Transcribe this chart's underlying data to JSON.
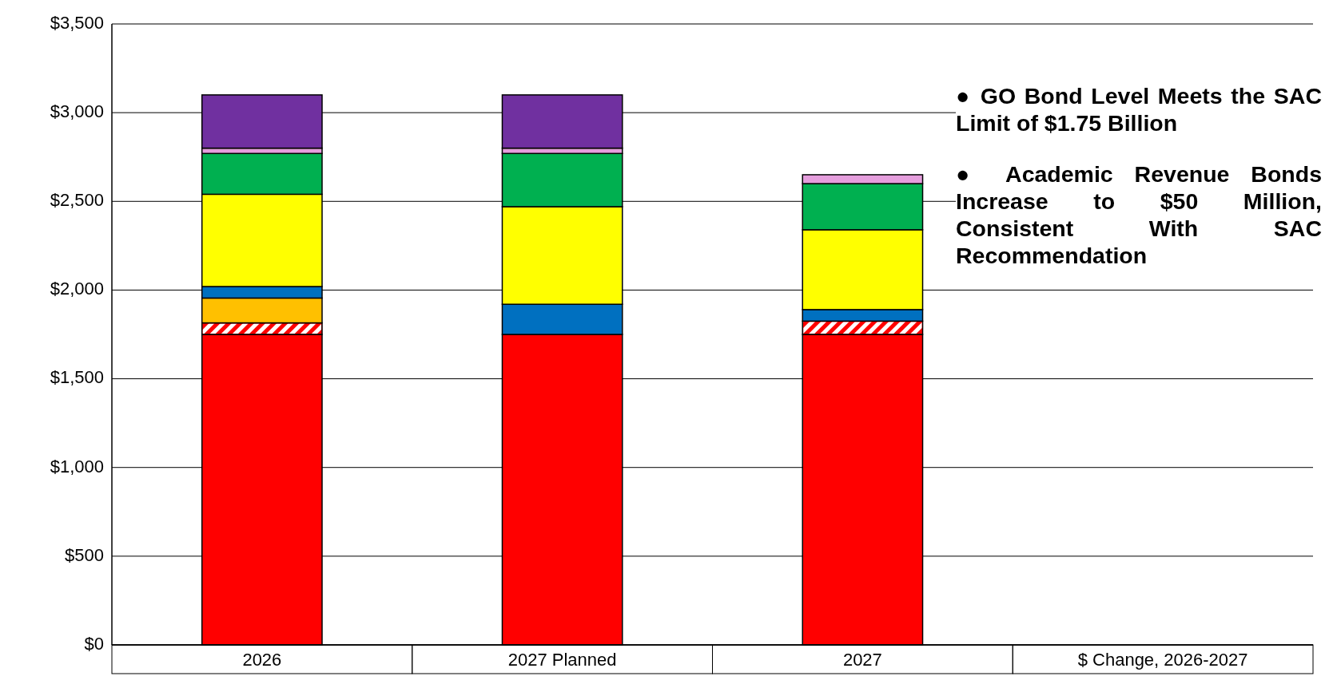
{
  "chart_data": {
    "type": "bar",
    "stacked": true,
    "categories": [
      "2026",
      "2027 Planned",
      "2027",
      "$ Change, 2026-2027"
    ],
    "series": [
      {
        "color": "#ff0000",
        "values": [
          1750,
          1750,
          1750,
          null
        ]
      },
      {
        "color": "#ff0000",
        "values": [
          65,
          0,
          75,
          null
        ]
      },
      {
        "color": "#ffc000",
        "values": [
          140,
          0,
          0,
          null
        ]
      },
      {
        "color": "#0070c0",
        "values": [
          65,
          170,
          65,
          null
        ]
      },
      {
        "color": "#ffff00",
        "values": [
          520,
          550,
          450,
          null
        ]
      },
      {
        "color": "#00b050",
        "values": [
          230,
          300,
          260,
          null
        ]
      },
      {
        "color": "#e59edd",
        "values": [
          30,
          30,
          50,
          null
        ]
      },
      {
        "color": "#7030a0",
        "values": [
          300,
          300,
          0,
          null
        ]
      }
    ],
    "ylim": [
      0,
      3500
    ],
    "yticks": [
      {
        "value": 0,
        "label": "$0"
      },
      {
        "value": 500,
        "label": "$500"
      },
      {
        "value": 1000,
        "label": "$1,000"
      },
      {
        "value": 1500,
        "label": "$1,500"
      },
      {
        "value": 2000,
        "label": "$2,000"
      },
      {
        "value": 2500,
        "label": "$2,500"
      },
      {
        "value": 3000,
        "label": "$3,000"
      },
      {
        "value": 3500,
        "label": "$3,500"
      }
    ],
    "grid": "y",
    "annotations": [
      "● GO Bond Level Meets the SAC Limit of $1.75 Billion",
      "● Academic Revenue Bonds Increase to $50 Million, Consistent With SAC Recommendation"
    ]
  }
}
